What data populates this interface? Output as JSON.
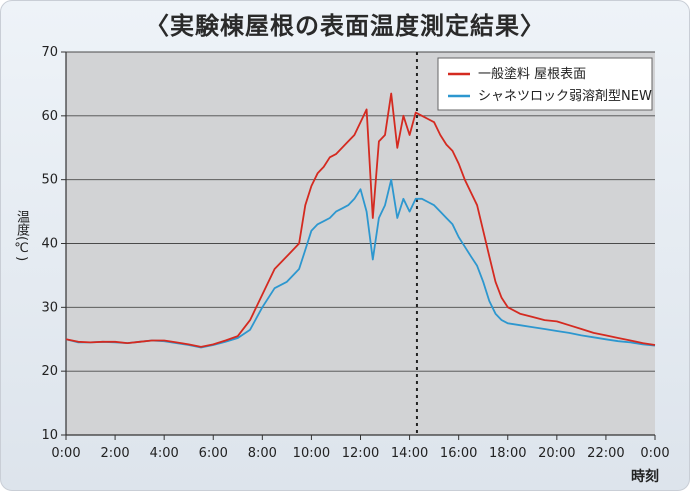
{
  "chart_data": {
    "type": "line",
    "title": "〈実験棟屋根の表面温度測定結果〉",
    "xlabel": "時刻",
    "ylabel": "温度(℃)",
    "ylim": [
      10,
      70
    ],
    "yticks": [
      10,
      20,
      30,
      40,
      50,
      60,
      70
    ],
    "xticks": [
      "0:00",
      "2:00",
      "4:00",
      "6:00",
      "8:00",
      "10:00",
      "12:00",
      "14:00",
      "16:00",
      "18:00",
      "20:00",
      "22:00",
      "0:00"
    ],
    "xlim": [
      0,
      24
    ],
    "grid": true,
    "legend_position": "top-right",
    "marker_line_x": 14.3,
    "series": [
      {
        "name": "一般塗料 屋根表面",
        "color": "#d42a20",
        "x": [
          0,
          0.5,
          1,
          1.5,
          2,
          2.5,
          3,
          3.5,
          4,
          4.5,
          5,
          5.5,
          6,
          6.5,
          7,
          7.5,
          8,
          8.5,
          9,
          9.25,
          9.5,
          9.75,
          10,
          10.25,
          10.5,
          10.75,
          11,
          11.25,
          11.5,
          11.75,
          12,
          12.25,
          12.5,
          12.75,
          13,
          13.25,
          13.5,
          13.75,
          14,
          14.25,
          14.5,
          14.75,
          15,
          15.25,
          15.5,
          15.75,
          16,
          16.25,
          16.5,
          16.75,
          17,
          17.25,
          17.5,
          17.75,
          18,
          18.5,
          19,
          19.5,
          20,
          20.5,
          21,
          21.5,
          22,
          22.5,
          23,
          23.5,
          24
        ],
        "y": [
          25.0,
          24.6,
          24.5,
          24.6,
          24.6,
          24.4,
          24.6,
          24.8,
          24.8,
          24.5,
          24.2,
          23.8,
          24.2,
          24.8,
          25.5,
          28.0,
          32.0,
          36.0,
          38.0,
          39.0,
          40.0,
          46.0,
          49.0,
          51.0,
          52.0,
          53.5,
          54.0,
          55.0,
          56.0,
          57.0,
          59.0,
          61.0,
          44.0,
          56.0,
          57.0,
          63.5,
          55.0,
          60.0,
          57.0,
          60.5,
          60.0,
          59.5,
          59.0,
          57.0,
          55.5,
          54.5,
          52.5,
          50.0,
          48.0,
          46.0,
          42.0,
          38.0,
          34.0,
          31.5,
          30.0,
          29.0,
          28.5,
          28.0,
          27.8,
          27.2,
          26.6,
          26.0,
          25.6,
          25.2,
          24.8,
          24.4,
          24.1
        ]
      },
      {
        "name": "シャネツロック弱溶剤型NEW",
        "color": "#2d97cf",
        "x": [
          0,
          0.5,
          1,
          1.5,
          2,
          2.5,
          3,
          3.5,
          4,
          4.5,
          5,
          5.5,
          6,
          6.5,
          7,
          7.5,
          8,
          8.5,
          9,
          9.25,
          9.5,
          9.75,
          10,
          10.25,
          10.5,
          10.75,
          11,
          11.25,
          11.5,
          11.75,
          12,
          12.25,
          12.5,
          12.75,
          13,
          13.25,
          13.5,
          13.75,
          14,
          14.25,
          14.5,
          14.75,
          15,
          15.25,
          15.5,
          15.75,
          16,
          16.25,
          16.5,
          16.75,
          17,
          17.25,
          17.5,
          17.75,
          18,
          18.5,
          19,
          19.5,
          20,
          20.5,
          21,
          21.5,
          22,
          22.5,
          23,
          23.5,
          24
        ],
        "y": [
          25.0,
          24.5,
          24.5,
          24.6,
          24.5,
          24.4,
          24.6,
          24.8,
          24.7,
          24.4,
          24.1,
          23.7,
          24.1,
          24.6,
          25.2,
          26.5,
          30.0,
          33.0,
          34.0,
          35.0,
          36.0,
          39.0,
          42.0,
          43.0,
          43.5,
          44.0,
          45.0,
          45.5,
          46.0,
          47.0,
          48.5,
          45.0,
          37.5,
          44.0,
          46.0,
          50.0,
          44.0,
          47.0,
          45.0,
          47.0,
          47.0,
          46.5,
          46.0,
          45.0,
          44.0,
          43.0,
          41.0,
          39.5,
          38.0,
          36.5,
          34.0,
          31.0,
          29.0,
          28.0,
          27.5,
          27.2,
          26.9,
          26.6,
          26.3,
          26.0,
          25.6,
          25.3,
          25.0,
          24.7,
          24.5,
          24.2,
          24.0
        ]
      }
    ]
  }
}
